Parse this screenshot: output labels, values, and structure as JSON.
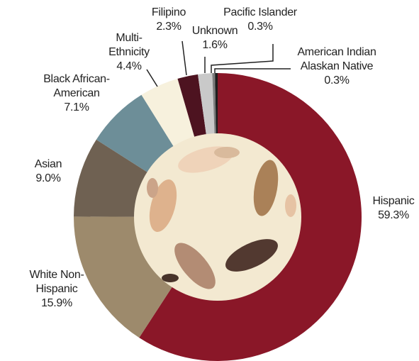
{
  "chart_data": {
    "type": "donut",
    "categories": [
      "Hispanic",
      "White Non-Hispanic",
      "Asian",
      "Black African-American",
      "Multi-Ethnicity",
      "Filipino",
      "Unknown",
      "Pacific Islander",
      "American Indian Alaskan Native"
    ],
    "values": [
      59.3,
      15.9,
      9.0,
      7.1,
      4.4,
      2.3,
      1.6,
      0.3,
      0.3
    ],
    "value_labels": [
      "59.3%",
      "15.9%",
      "9.0%",
      "7.1%",
      "4.4%",
      "2.3%",
      "1.6%",
      "0.3%",
      "0.3%"
    ],
    "colors": [
      "#8a1728",
      "#9d8a6c",
      "#6f6152",
      "#6d8e98",
      "#f7f1dd",
      "#4d1320",
      "#c9c9c9",
      "#7c7c7c",
      "#1e1e1e"
    ]
  }
}
